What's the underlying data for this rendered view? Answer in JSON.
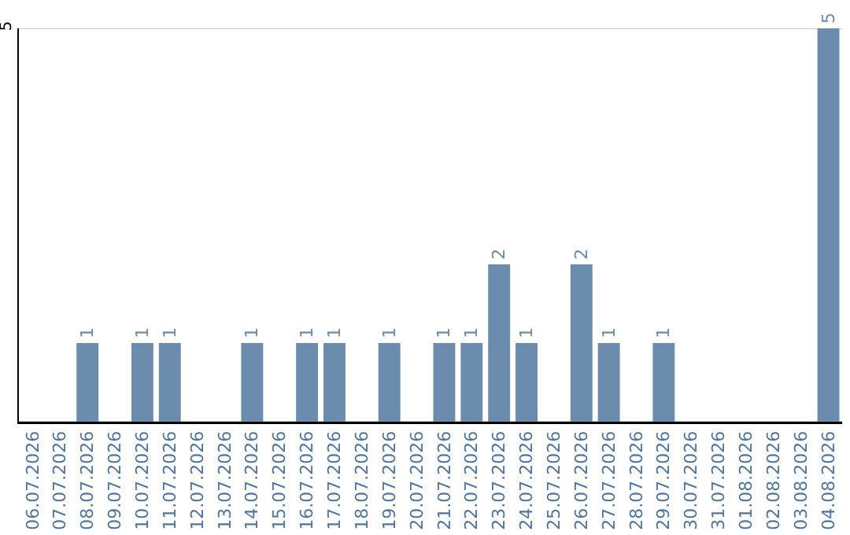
{
  "chart_data": {
    "type": "bar",
    "categories": [
      "06.07.2026",
      "07.07.2026",
      "08.07.2026",
      "09.07.2026",
      "10.07.2026",
      "11.07.2026",
      "12.07.2026",
      "13.07.2026",
      "14.07.2026",
      "15.07.2026",
      "16.07.2026",
      "17.07.2026",
      "18.07.2026",
      "19.07.2026",
      "20.07.2026",
      "21.07.2026",
      "22.07.2026",
      "23.07.2026",
      "24.07.2026",
      "25.07.2026",
      "26.07.2026",
      "27.07.2026",
      "28.07.2026",
      "29.07.2026",
      "30.07.2026",
      "31.07.2026",
      "01.08.2026",
      "02.08.2026",
      "03.08.2026",
      "04.08.2026"
    ],
    "values": [
      0,
      0,
      1,
      0,
      1,
      1,
      0,
      0,
      1,
      0,
      1,
      1,
      0,
      1,
      0,
      1,
      1,
      2,
      1,
      0,
      2,
      1,
      0,
      1,
      0,
      0,
      0,
      0,
      0,
      5
    ],
    "color": "#6b8cac",
    "ylim": [
      0,
      5
    ],
    "yticks": [
      {
        "value": 0,
        "label": null
      },
      5
    ],
    "value_labels": [
      null,
      null,
      "1",
      null,
      "1",
      "1",
      null,
      null,
      "1",
      null,
      "1",
      "1",
      null,
      "1",
      null,
      "1",
      "1",
      "2",
      "1",
      null,
      "2",
      "1",
      null,
      "1",
      null,
      null,
      null,
      null,
      null,
      "5"
    ],
    "grid": "y"
  }
}
